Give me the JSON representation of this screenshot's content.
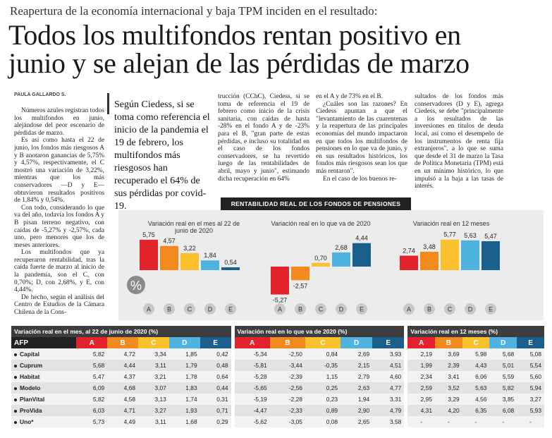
{
  "kicker": "Reapertura de la economía internacional y baja TPM inciden en el resultado:",
  "headline_1": "Todos los multifondos rentan positivo en",
  "headline_2": "junio y se alejan de las pérdidas de marzo",
  "byline": "PAULA GALLARDO S.",
  "pull_quote": "Según Ciedess, si se toma como referencia el inicio de la pandemia el 19 de febrero, los multifondos más riesgosos han recuperado el 64% de sus pérdidas por covid-19.",
  "col1": [
    "Números azules registran todos los multifondos en junio, alejándose del peor escenario de pérdidas de marzo.",
    "Es así como hasta el 22 de junio, los fondos más riesgosos A y B anotaron ganancias de 5,75% y 4,57%, respectivamente, el C mostró una variación de 3,22%, mientras que los más conservadores —D y E— obtuvieron resultados positivos de 1,84% y 0,54%.",
    "Con todo, considerando lo que va del año, todavía los fondos A y B pisan terreno negativo, con caídas de -5,27% y -2,57%, cada uno, pero menores que los de meses anteriores.",
    "Los multifondos que ya recuperaron rentabilidad, tras la caída fuerte de marzo al inicio de la pandemia, son el C, con 0,70%; D, con 2,68%, y E, con 4,44%.",
    "De hecho, según el análisis del Centro de Estudios de la Cámara Chilena de la Cons-"
  ],
  "col2": "trucción (CChC), Ciedess, si se toma de referencia el 19 de febrero como inicio de la crisis sanitaria, con caídas de hasta -28% en el fondo A y de -23% para el B, \"gran parte de estas pérdidas, e incluso su totalidad en el caso de los fondos conservadores, se ha revertido luego de las rentabilidades de abril, mayo y junio\", estimando dicha recuperación en 64%",
  "col3": [
    "en el A y de 73% en el B.",
    "¿Cuáles son las razones? En Ciedess apuntan a que el \"levantamiento de las cuarentenas y la reapertura de las principales economías del mundo impactaron en que todos los multifondos de pensiones en lo que va de junio, y en sus resultados históricos, los fondos más riesgosos sean los que más rentaron\".",
    "En el caso de los buenos re-"
  ],
  "col4": "sultados de los fondos más conservadores (D y E), agrega Ciedess, se debe \"principalmente a los resultados de las inversiones en títulos de deuda local, así como el desempeño de los instrumentos de renta fija extranjeros\", a lo que se suma que desde el 31 de marzo la Tasa de Política Monetaria (TPM) está en un mínimo histórico, lo que impulsó a la baja a las tasas de interés.",
  "banner": "RENTABILIDAD REAL DE LOS FONDOS DE PENSIONES",
  "percent_symbol": "%",
  "colors": {
    "A": "#e3232c",
    "B": "#f28a1e",
    "C": "#fbc02d",
    "D": "#4fb3e0",
    "E": "#1b5f8c"
  },
  "chart_data": [
    {
      "type": "bar",
      "title": "Variación real en el mes al 22 de junio de 2020",
      "categories": [
        "A",
        "B",
        "C",
        "D",
        "E"
      ],
      "values": [
        5.75,
        4.57,
        3.22,
        1.84,
        0.54
      ],
      "labels": [
        "5,75",
        "4,57",
        "3,22",
        "1,84",
        "0,54"
      ]
    },
    {
      "type": "bar",
      "title": "Variación real en lo que va de 2020",
      "categories": [
        "A",
        "B",
        "C",
        "D",
        "E"
      ],
      "values": [
        -5.27,
        -2.57,
        0.7,
        2.68,
        4.44
      ],
      "labels": [
        "-5,27",
        "-2,57",
        "0,70",
        "2,68",
        "4,44"
      ]
    },
    {
      "type": "bar",
      "title": "Variación real en 12 meses",
      "categories": [
        "A",
        "B",
        "C",
        "D",
        "E"
      ],
      "values": [
        2.74,
        3.48,
        5.77,
        5.63,
        5.47
      ],
      "labels": [
        "2,74",
        "3,48",
        "5,77",
        "5,63",
        "5,47"
      ]
    }
  ],
  "table": {
    "section_titles": [
      "Variación real en el mes, al 22 de junio de 2020 (%)",
      "Variación real en lo que va de 2020 (%)",
      "Variación real en 12 meses (%)"
    ],
    "afp_label": "AFP",
    "funds": [
      "A",
      "B",
      "C",
      "D",
      "E"
    ],
    "rows": [
      {
        "name": "Capital",
        "v": [
          "5,82",
          "4,72",
          "3,34",
          "1,85",
          "0,42",
          "-5,34",
          "-2,50",
          "0,84",
          "2,69",
          "3,93",
          "2,19",
          "3,69",
          "5,98",
          "5,68",
          "5,08"
        ]
      },
      {
        "name": "Cuprum",
        "v": [
          "5,68",
          "4,44",
          "3,11",
          "1,79",
          "0,48",
          "-5,81",
          "-3,44",
          "-0,35",
          "2,15",
          "4,51",
          "1,99",
          "2,39",
          "4,43",
          "5,01",
          "5,54"
        ]
      },
      {
        "name": "Habitat",
        "v": [
          "5,47",
          "4,37",
          "3,21",
          "1,78",
          "0,64",
          "-5,28",
          "-2,39",
          "1,15",
          "2,79",
          "4,60",
          "2,34",
          "3,41",
          "6,06",
          "5,59",
          "5,60"
        ]
      },
      {
        "name": "Modelo",
        "v": [
          "6,09",
          "4,68",
          "3,07",
          "1,83",
          "0,44",
          "-5,65",
          "-2,56",
          "0,25",
          "2,63",
          "4,77",
          "2,59",
          "3,52",
          "5,63",
          "5,82",
          "5,94"
        ]
      },
      {
        "name": "PlanVital",
        "v": [
          "5,82",
          "4,58",
          "3,13",
          "1,74",
          "0,31",
          "-5,19",
          "-2,28",
          "0,23",
          "1,94",
          "3,31",
          "2,95",
          "3,29",
          "4,56",
          "3,85",
          "3,27"
        ]
      },
      {
        "name": "ProVida",
        "v": [
          "6,03",
          "4,71",
          "3,27",
          "1,93",
          "0,71",
          "-4,47",
          "-2,33",
          "0,89",
          "2,90",
          "4,79",
          "4,31",
          "4,20",
          "6,35",
          "6,08",
          "5,93"
        ]
      },
      {
        "name": "Uno*",
        "v": [
          "5,73",
          "4,49",
          "3,11",
          "1,68",
          "0,29",
          "-5,62",
          "-3,05",
          "0,08",
          "2,65",
          "3,58",
          "-",
          "-",
          "-",
          "-",
          "-"
        ]
      }
    ]
  }
}
